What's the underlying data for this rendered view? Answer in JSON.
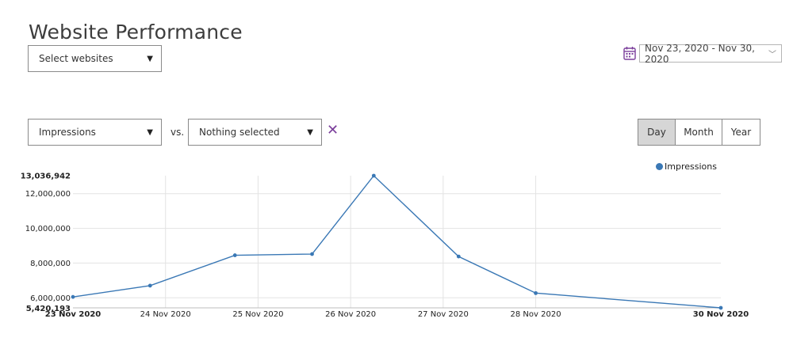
{
  "header": {
    "title": "Website Performance"
  },
  "filters": {
    "websites_label": "Select websites",
    "metric_label": "Impressions",
    "vs_label": "vs.",
    "compare_label": "Nothing selected",
    "clear_icon": "close-icon"
  },
  "date_range": {
    "label": "Nov 23, 2020 - Nov 30, 2020",
    "icon": "calendar-icon"
  },
  "period": {
    "buttons": [
      "Day",
      "Month",
      "Year"
    ],
    "active": "Day"
  },
  "legend": {
    "label": "Impressions",
    "color": "#3a78b5"
  },
  "chart_data": {
    "type": "line",
    "title": "",
    "xlabel": "",
    "ylabel": "",
    "x": [
      "23 Nov 2020",
      "24 Nov 2020",
      "25 Nov 2020",
      "26 Nov 2020",
      "27 Nov 2020",
      "28 Nov 2020",
      "30 Nov 2020"
    ],
    "x_tick_labels": [
      "23 Nov 2020",
      "24 Nov 2020",
      "25 Nov 2020",
      "26 Nov 2020",
      "27 Nov 2020",
      "28 Nov 2020",
      "30 Nov 2020"
    ],
    "series": [
      {
        "name": "Impressions",
        "color": "#3a78b5",
        "points": [
          {
            "x": "2020-11-23T00:00",
            "y": 6050000
          },
          {
            "x": "2020-11-23T20:00",
            "y": 6700000
          },
          {
            "x": "2020-11-24T18:00",
            "y": 8450000
          },
          {
            "x": "2020-11-25T14:00",
            "y": 8520000
          },
          {
            "x": "2020-11-26T06:00",
            "y": 13036942
          },
          {
            "x": "2020-11-27T04:00",
            "y": 8380000
          },
          {
            "x": "2020-11-28T00:00",
            "y": 6270000
          },
          {
            "x": "2020-11-30T00:00",
            "y": 5420193
          }
        ]
      }
    ],
    "y_ticks": [
      "5,420,193",
      "6,000,000",
      "8,000,000",
      "10,000,000",
      "12,000,000",
      "13,036,942"
    ],
    "y_tick_values": [
      5420193,
      6000000,
      8000000,
      10000000,
      12000000,
      13036942
    ],
    "ylim": [
      5420193,
      13036942
    ],
    "grid": true,
    "legend": "top-right"
  }
}
